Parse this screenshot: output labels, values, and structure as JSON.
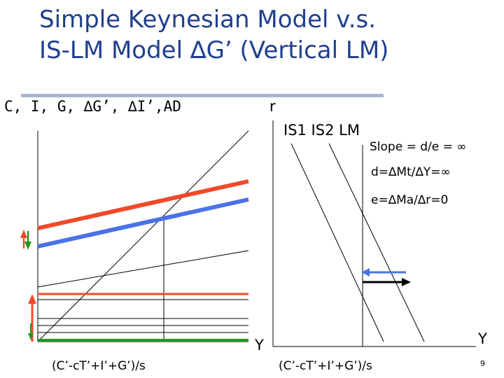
{
  "slide": {
    "title_line1": "Simple Keynesian Model v.s.",
    "title_line2": "IS-LM Model ∆G’ (Vertical LM)",
    "page_number": "9"
  },
  "left_panel": {
    "y_axis_label": "C, I, G, ∆G’, ∆I’,AD",
    "x_axis_label": "Y",
    "x_intercept_label": "(C’-cT’+I’+G’)/s"
  },
  "right_panel": {
    "y_axis_label": "r",
    "curve_labels": "IS1 IS2 LM",
    "slope_note": "Slope = d/e = ∞",
    "d_note": "d=∆Mt/∆Y=∞",
    "e_note": "e=∆Ma/∆r=0",
    "x_axis_label": "Y",
    "x_intercept_label": "(C’-cT’+I’+G’)/s"
  },
  "colors": {
    "title": "#1f3f8f",
    "red": "#f04a2a",
    "blue": "#4a72e8",
    "green": "#1f9a1f",
    "rule": "#a9b6d2"
  }
}
